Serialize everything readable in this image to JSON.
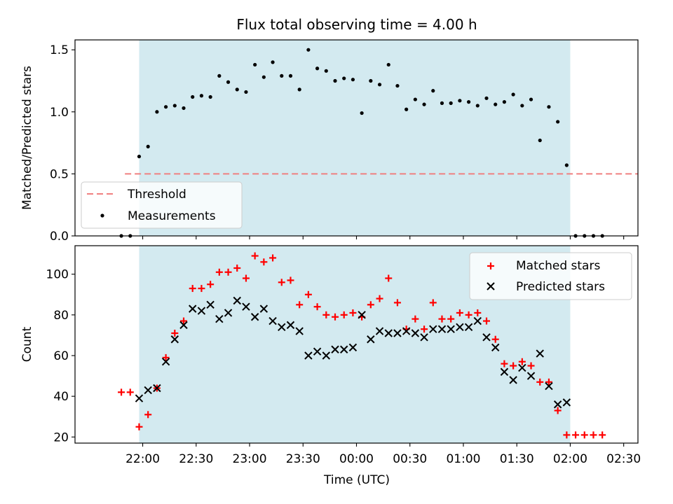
{
  "title": "Flux total observing time = 4.00 h",
  "colors": {
    "shade": "#d3eaf0",
    "threshold": "#f08080",
    "measurements": "#000000",
    "matched": "#ff0000",
    "predicted": "#000000"
  },
  "x_ticks": [
    "22:00",
    "22:30",
    "23:00",
    "23:30",
    "00:00",
    "00:30",
    "01:00",
    "01:30",
    "02:00",
    "02:30"
  ],
  "x_tick_minutes": [
    0,
    30,
    60,
    90,
    120,
    150,
    180,
    210,
    240,
    270
  ],
  "observing_window_minutes": [
    -2,
    240
  ],
  "chart_data": [
    {
      "type": "scatter",
      "panel": "top",
      "ylabel": "Matched/Predicted stars",
      "ylim": [
        0,
        1.58
      ],
      "yticks": [
        "0.0",
        "0.5",
        "1.0",
        "1.5"
      ],
      "ytick_values": [
        0,
        0.5,
        1.0,
        1.5
      ],
      "legend_position": "lower-left",
      "threshold": {
        "name": "Threshold",
        "value": 0.5,
        "x_range_minutes": [
          -10,
          278
        ]
      },
      "series": [
        {
          "name": "Measurements",
          "x_minutes": [
            -12,
            -7,
            -2,
            3,
            8,
            13,
            18,
            23,
            28,
            33,
            38,
            43,
            48,
            53,
            58,
            63,
            68,
            73,
            78,
            83,
            88,
            93,
            98,
            103,
            108,
            113,
            118,
            123,
            128,
            133,
            138,
            143,
            148,
            153,
            158,
            163,
            168,
            173,
            178,
            183,
            188,
            193,
            198,
            203,
            208,
            213,
            218,
            223,
            228,
            233,
            238,
            243,
            248,
            253,
            258
          ],
          "y": [
            0.0,
            0.0,
            0.64,
            0.72,
            1.0,
            1.04,
            1.05,
            1.03,
            1.12,
            1.13,
            1.12,
            1.29,
            1.24,
            1.18,
            1.16,
            1.38,
            1.28,
            1.4,
            1.29,
            1.29,
            1.18,
            1.5,
            1.35,
            1.33,
            1.25,
            1.27,
            1.26,
            0.99,
            1.25,
            1.22,
            1.38,
            1.21,
            1.02,
            1.1,
            1.06,
            1.17,
            1.07,
            1.07,
            1.09,
            1.08,
            1.05,
            1.11,
            1.06,
            1.08,
            1.14,
            1.05,
            1.1,
            0.77,
            1.04,
            0.92,
            0.57,
            0.0,
            0.0,
            0.0,
            0.0
          ]
        }
      ]
    },
    {
      "type": "scatter",
      "panel": "bottom",
      "xlabel": "Time (UTC)",
      "ylabel": "Count",
      "ylim": [
        17,
        114
      ],
      "yticks": [
        "20",
        "40",
        "60",
        "80",
        "100"
      ],
      "ytick_values": [
        20,
        40,
        60,
        80,
        100
      ],
      "legend_position": "top-right",
      "series": [
        {
          "name": "Matched stars",
          "x_minutes": [
            -12,
            -7,
            -2,
            3,
            8,
            13,
            18,
            23,
            28,
            33,
            38,
            43,
            48,
            53,
            58,
            63,
            68,
            73,
            78,
            83,
            88,
            93,
            98,
            103,
            108,
            113,
            118,
            123,
            128,
            133,
            138,
            143,
            148,
            153,
            158,
            163,
            168,
            173,
            178,
            183,
            188,
            193,
            198,
            203,
            208,
            213,
            218,
            223,
            228,
            233,
            238,
            243,
            248,
            253,
            258
          ],
          "y": [
            42,
            42,
            25,
            31,
            44,
            59,
            71,
            77,
            93,
            93,
            95,
            101,
            101,
            103,
            98,
            109,
            106,
            108,
            96,
            97,
            85,
            90,
            84,
            80,
            79,
            80,
            81,
            79,
            85,
            88,
            98,
            86,
            73,
            78,
            73,
            86,
            78,
            78,
            81,
            80,
            81,
            77,
            68,
            56,
            55,
            57,
            55,
            47,
            47,
            33,
            21,
            21,
            21,
            21,
            21
          ]
        },
        {
          "name": "Predicted stars",
          "x_minutes": [
            -2,
            3,
            8,
            13,
            18,
            23,
            28,
            33,
            38,
            43,
            48,
            53,
            58,
            63,
            68,
            73,
            78,
            83,
            88,
            93,
            98,
            103,
            108,
            113,
            118,
            123,
            128,
            133,
            138,
            143,
            148,
            153,
            158,
            163,
            168,
            173,
            178,
            183,
            188,
            193,
            198,
            203,
            208,
            213,
            218,
            223,
            228,
            233,
            238
          ],
          "y": [
            39,
            43,
            44,
            57,
            68,
            75,
            83,
            82,
            85,
            78,
            81,
            87,
            84,
            79,
            83,
            77,
            74,
            75,
            72,
            60,
            62,
            60,
            63,
            63,
            64,
            80,
            68,
            72,
            71,
            71,
            72,
            71,
            69,
            73,
            73,
            73,
            74,
            74,
            77,
            69,
            64,
            52,
            48,
            54,
            50,
            61,
            45,
            36,
            37
          ]
        }
      ]
    }
  ]
}
